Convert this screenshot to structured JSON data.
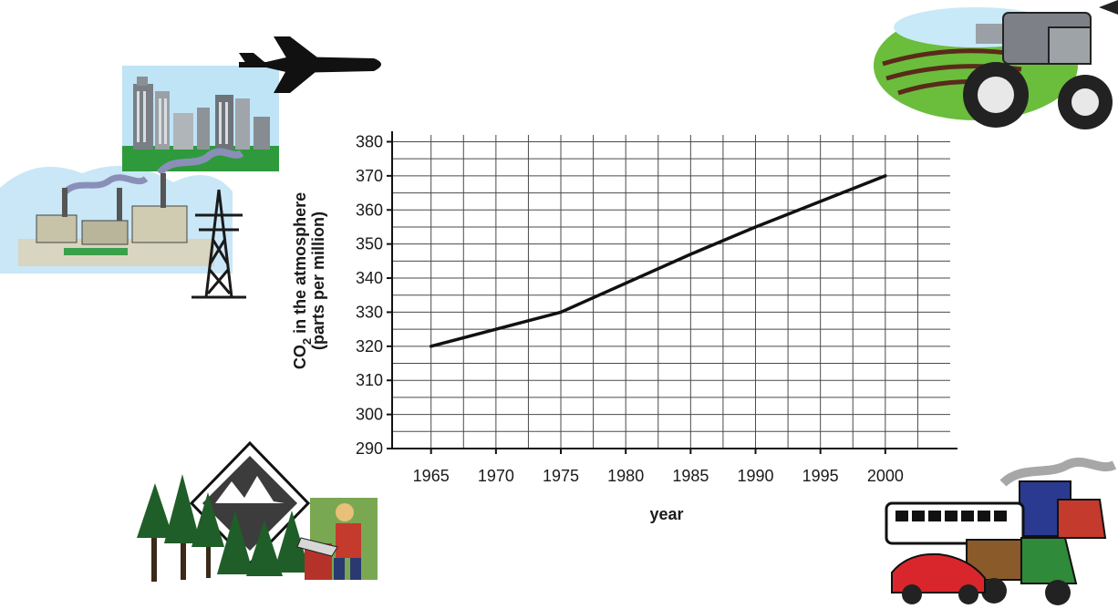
{
  "chart_data": {
    "type": "line",
    "title": "",
    "xlabel": "year",
    "ylabel_line1": "CO",
    "ylabel_sub": "2",
    "ylabel_line1_rest": " in the atmosphere",
    "ylabel_line2": "(parts per million)",
    "x_ticks": [
      "1965",
      "1970",
      "1975",
      "1980",
      "1985",
      "1990",
      "1995",
      "2000"
    ],
    "y_ticks": [
      "290",
      "300",
      "310",
      "320",
      "330",
      "340",
      "350",
      "360",
      "370",
      "380"
    ],
    "xlim": [
      1962,
      2005
    ],
    "ylim": [
      290,
      382
    ],
    "grid": true,
    "series": [
      {
        "x": [
          1965,
          1975,
          1985,
          1990,
          2000
        ],
        "y": [
          320,
          330,
          347,
          355,
          370
        ],
        "color": "#111111"
      }
    ]
  },
  "clipart": [
    "city-factory-powerline-illustration",
    "airplane-illustration",
    "farm-tractor-illustration",
    "forest-logging-illustration",
    "vehicles-illustration"
  ],
  "colors": {
    "line": "#111111",
    "grid": "#4a4a4a",
    "sky": "#b9e3f5",
    "grass": "#2f9a3a"
  }
}
